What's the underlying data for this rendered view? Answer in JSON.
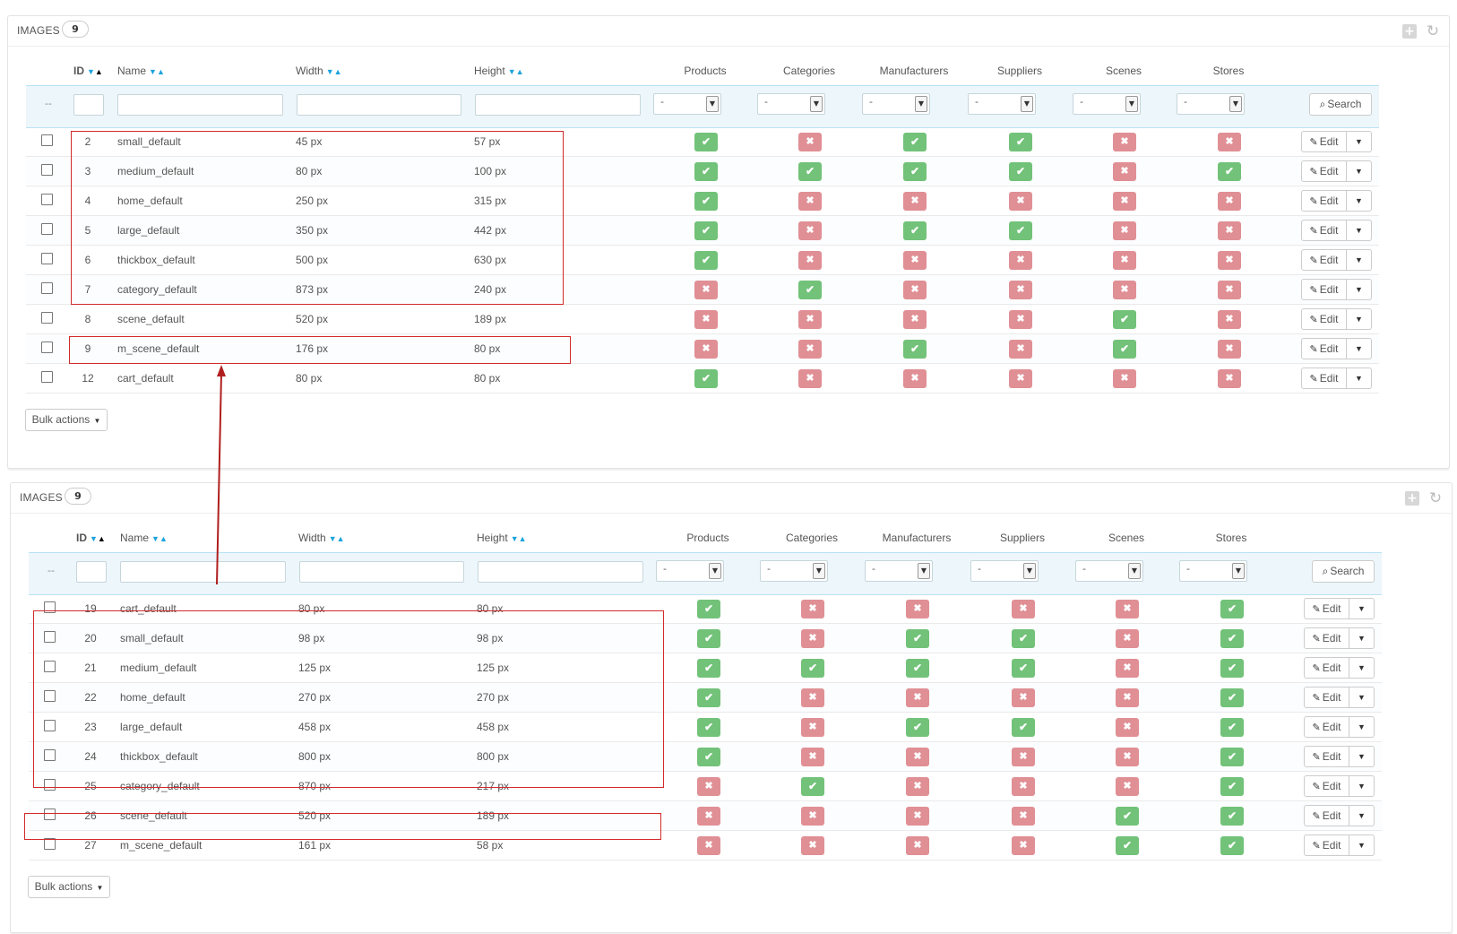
{
  "columns": {
    "id": "ID",
    "name": "Name",
    "width": "Width",
    "height": "Height",
    "products": "Products",
    "categories": "Categories",
    "manufacturers": "Manufacturers",
    "suppliers": "Suppliers",
    "scenes": "Scenes",
    "stores": "Stores"
  },
  "filter": {
    "dash": "--",
    "select_value": "-",
    "search_label": "Search"
  },
  "row_actions": {
    "edit_label": "Edit"
  },
  "bulk_actions_label": "Bulk actions",
  "icons": {
    "yes": "check-icon",
    "no": "cross-icon",
    "edit": "pencil-icon",
    "search": "search-icon",
    "add": "add-icon",
    "refresh": "refresh-icon",
    "dropdown": "caret-down-icon"
  },
  "colors": {
    "yes": "#72c279",
    "no": "#e08f95",
    "highlight": "#d22a2a",
    "sort_arrow": "#1ba3dd"
  },
  "panels": [
    {
      "title": "IMAGES",
      "count": "9",
      "rows": [
        {
          "id": "2",
          "name": "small_default",
          "width": "45 px",
          "height": "57 px",
          "flags": [
            1,
            0,
            1,
            1,
            0,
            0
          ]
        },
        {
          "id": "3",
          "name": "medium_default",
          "width": "80 px",
          "height": "100 px",
          "flags": [
            1,
            1,
            1,
            1,
            0,
            1
          ]
        },
        {
          "id": "4",
          "name": "home_default",
          "width": "250 px",
          "height": "315 px",
          "flags": [
            1,
            0,
            0,
            0,
            0,
            0
          ]
        },
        {
          "id": "5",
          "name": "large_default",
          "width": "350 px",
          "height": "442 px",
          "flags": [
            1,
            0,
            1,
            1,
            0,
            0
          ]
        },
        {
          "id": "6",
          "name": "thickbox_default",
          "width": "500 px",
          "height": "630 px",
          "flags": [
            1,
            0,
            0,
            0,
            0,
            0
          ]
        },
        {
          "id": "7",
          "name": "category_default",
          "width": "873 px",
          "height": "240 px",
          "flags": [
            0,
            1,
            0,
            0,
            0,
            0
          ]
        },
        {
          "id": "8",
          "name": "scene_default",
          "width": "520 px",
          "height": "189 px",
          "flags": [
            0,
            0,
            0,
            0,
            1,
            0
          ]
        },
        {
          "id": "9",
          "name": "m_scene_default",
          "width": "176 px",
          "height": "80 px",
          "flags": [
            0,
            0,
            1,
            0,
            1,
            0
          ]
        },
        {
          "id": "12",
          "name": "cart_default",
          "width": "80 px",
          "height": "80 px",
          "flags": [
            1,
            0,
            0,
            0,
            0,
            0
          ]
        }
      ]
    },
    {
      "title": "IMAGES",
      "count": "9",
      "rows": [
        {
          "id": "19",
          "name": "cart_default",
          "width": "80 px",
          "height": "80 px",
          "flags": [
            1,
            0,
            0,
            0,
            0,
            1
          ]
        },
        {
          "id": "20",
          "name": "small_default",
          "width": "98 px",
          "height": "98 px",
          "flags": [
            1,
            0,
            1,
            1,
            0,
            1
          ]
        },
        {
          "id": "21",
          "name": "medium_default",
          "width": "125 px",
          "height": "125 px",
          "flags": [
            1,
            1,
            1,
            1,
            0,
            1
          ]
        },
        {
          "id": "22",
          "name": "home_default",
          "width": "270 px",
          "height": "270 px",
          "flags": [
            1,
            0,
            0,
            0,
            0,
            1
          ]
        },
        {
          "id": "23",
          "name": "large_default",
          "width": "458 px",
          "height": "458 px",
          "flags": [
            1,
            0,
            1,
            1,
            0,
            1
          ]
        },
        {
          "id": "24",
          "name": "thickbox_default",
          "width": "800 px",
          "height": "800 px",
          "flags": [
            1,
            0,
            0,
            0,
            0,
            1
          ]
        },
        {
          "id": "25",
          "name": "category_default",
          "width": "870 px",
          "height": "217 px",
          "flags": [
            0,
            1,
            0,
            0,
            0,
            1
          ]
        },
        {
          "id": "26",
          "name": "scene_default",
          "width": "520 px",
          "height": "189 px",
          "flags": [
            0,
            0,
            0,
            0,
            1,
            1
          ]
        },
        {
          "id": "27",
          "name": "m_scene_default",
          "width": "161 px",
          "height": "58 px",
          "flags": [
            0,
            0,
            0,
            0,
            1,
            1
          ]
        }
      ]
    }
  ]
}
